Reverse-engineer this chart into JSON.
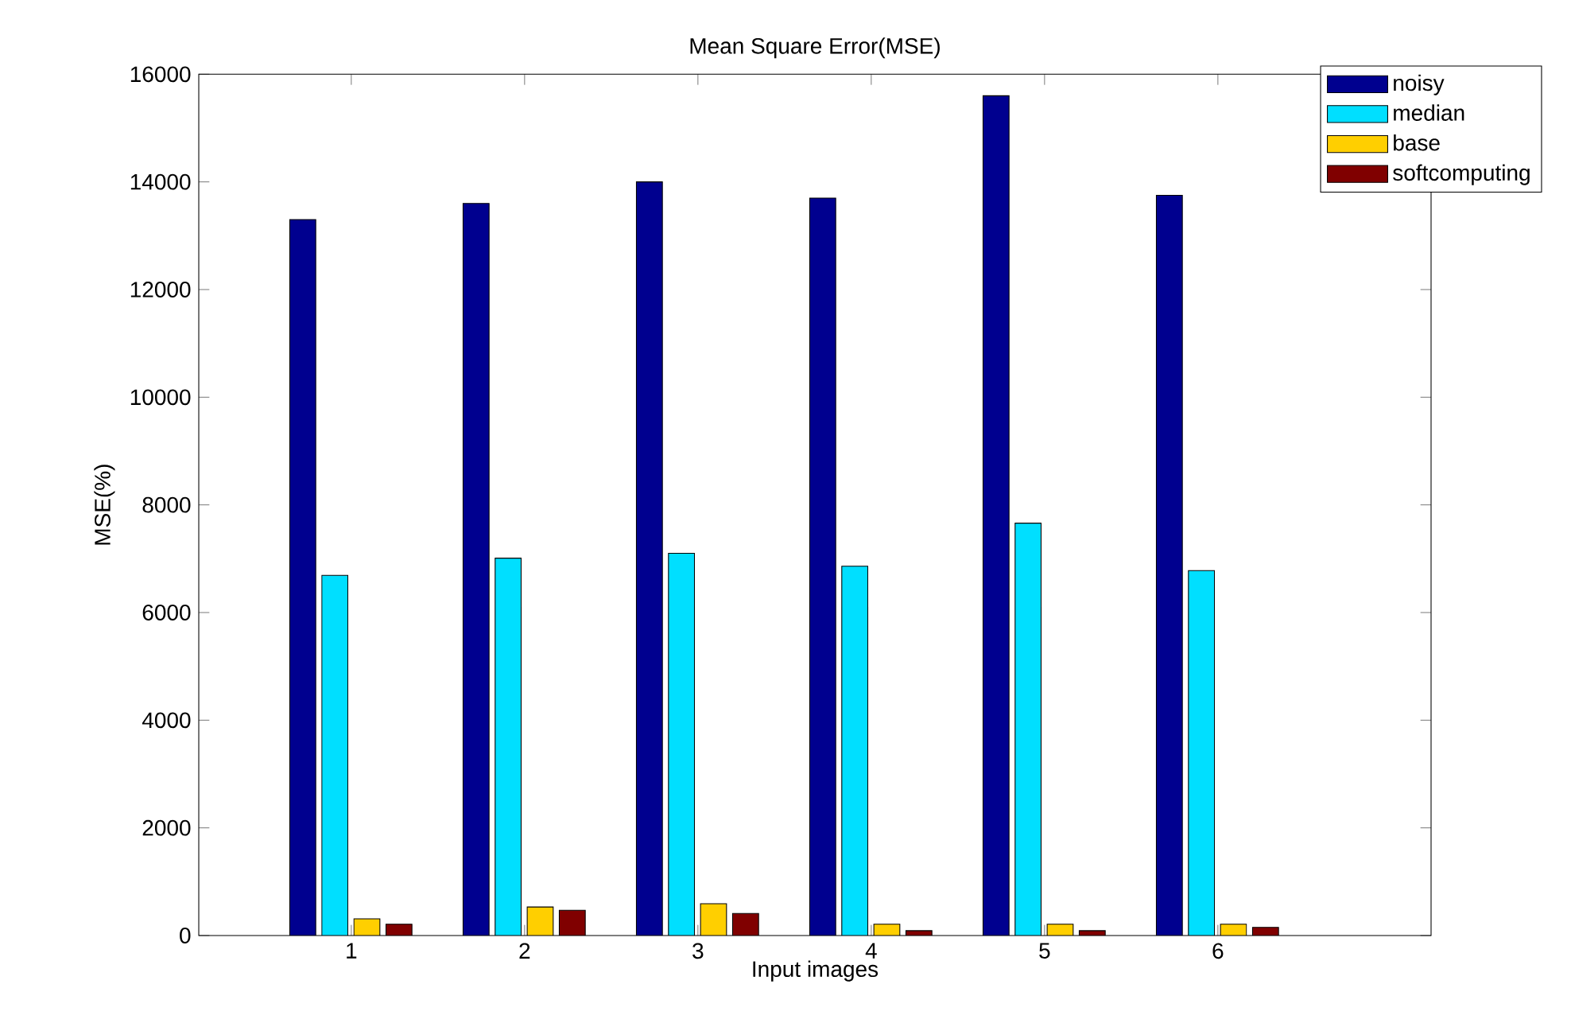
{
  "chart_data": {
    "type": "bar",
    "title": "Mean Square Error(MSE)",
    "xlabel": "Input images",
    "ylabel": "MSE(%)",
    "categories": [
      "1",
      "2",
      "3",
      "4",
      "5",
      "6"
    ],
    "series": [
      {
        "name": "noisy",
        "color": "#00008f",
        "values": [
          13300,
          13600,
          14000,
          13700,
          15600,
          13750
        ]
      },
      {
        "name": "median",
        "color": "#00dfff",
        "values": [
          6690,
          7010,
          7100,
          6860,
          7660,
          6780
        ]
      },
      {
        "name": "base",
        "color": "#ffcf00",
        "values": [
          310,
          530,
          590,
          210,
          210,
          210
        ]
      },
      {
        "name": "softcomputing",
        "color": "#800000",
        "values": [
          210,
          470,
          410,
          90,
          90,
          150
        ]
      }
    ],
    "ylim": [
      0,
      16000
    ],
    "yticks": [
      0,
      2000,
      4000,
      6000,
      8000,
      10000,
      12000,
      14000,
      16000
    ],
    "grid": false,
    "legend": "top right"
  }
}
